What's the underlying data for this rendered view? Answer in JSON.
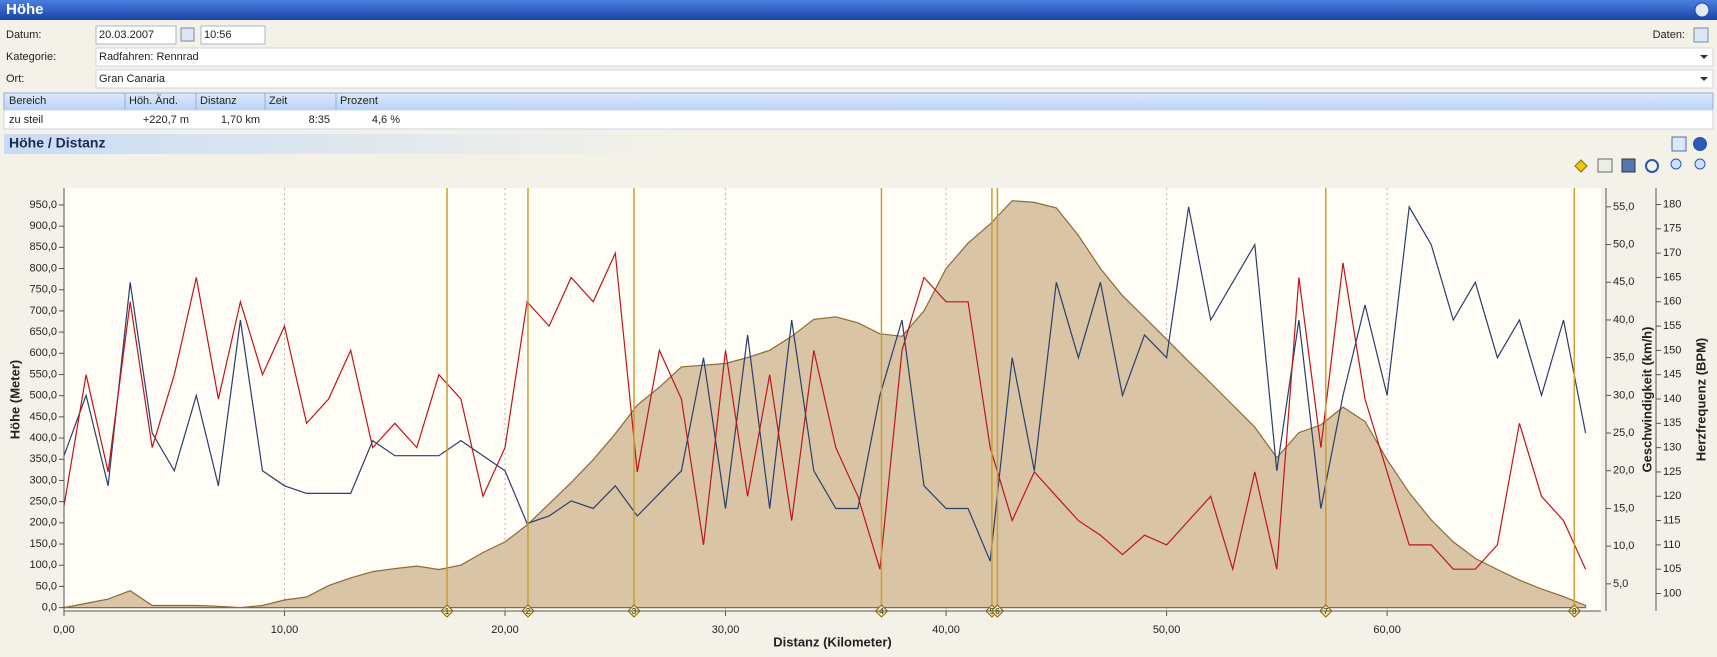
{
  "header": {
    "title": "Höhe"
  },
  "form": {
    "date_label": "Datum:",
    "date": "20.03.2007",
    "time": "10:56",
    "data_label": "Daten:",
    "category_label": "Kategorie:",
    "category": "Radfahren: Rennrad",
    "place_label": "Ort:",
    "place": "Gran Canaria"
  },
  "table": {
    "columns": [
      "Bereich",
      "Höh. Änd.",
      "Distanz",
      "Zeit",
      "Prozent"
    ],
    "rows": [
      [
        "zu steil",
        "+220,7 m",
        "1,70 km",
        "8:35",
        "4,6 %"
      ]
    ]
  },
  "chart_data": {
    "type": "line",
    "title": "Höhe / Distanz",
    "x_label": "Distanz (Kilometer)",
    "y_label": "Höhe (Meter)",
    "y2_label": "Geschwindigkeit (km/h)",
    "y3_label": "Herzfrequenz (BPM)",
    "grid": "x",
    "x": [
      0,
      1,
      2,
      3,
      4,
      5,
      6,
      7,
      8,
      9,
      10,
      11,
      12,
      13,
      14,
      15,
      16,
      17,
      18,
      19,
      20,
      21,
      22,
      23,
      24,
      25,
      26,
      27,
      28,
      29,
      30,
      31,
      32,
      33,
      34,
      35,
      36,
      37,
      38,
      39,
      40,
      41,
      42,
      43,
      44,
      45,
      46,
      47,
      48,
      49,
      50,
      51,
      52,
      53,
      54,
      55,
      56,
      57,
      58,
      59,
      60,
      61,
      62,
      63,
      64,
      65,
      66,
      67,
      68,
      69
    ],
    "xlim": [
      0,
      69.7
    ],
    "xticks": [
      {
        "value": 0,
        "label": "0,00"
      },
      {
        "value": 10,
        "label": "10,00"
      },
      {
        "value": 20,
        "label": "20,00"
      },
      {
        "value": 30,
        "label": "30,00"
      },
      {
        "value": 40,
        "label": "40,00"
      },
      {
        "value": 50,
        "label": "50,00"
      },
      {
        "value": 60,
        "label": "60,00"
      }
    ],
    "ylim": [
      -8,
      990
    ],
    "yticks": [
      {
        "value": 0,
        "label": "0,0"
      },
      {
        "value": 50,
        "label": "50,0"
      },
      {
        "value": 100,
        "label": "100,0"
      },
      {
        "value": 150,
        "label": "150,0"
      },
      {
        "value": 200,
        "label": "200,0"
      },
      {
        "value": 250,
        "label": "250,0"
      },
      {
        "value": 300,
        "label": "300,0"
      },
      {
        "value": 350,
        "label": "350,0"
      },
      {
        "value": 400,
        "label": "400,0"
      },
      {
        "value": 450,
        "label": "450,0"
      },
      {
        "value": 500,
        "label": "500,0"
      },
      {
        "value": 550,
        "label": "550,0"
      },
      {
        "value": 600,
        "label": "600,0"
      },
      {
        "value": 650,
        "label": "650,0"
      },
      {
        "value": 700,
        "label": "700,0"
      },
      {
        "value": 750,
        "label": "750,0"
      },
      {
        "value": 800,
        "label": "800,0"
      },
      {
        "value": 850,
        "label": "850,0"
      },
      {
        "value": 900,
        "label": "900,0"
      },
      {
        "value": 950,
        "label": "950,0"
      }
    ],
    "y2lim": [
      1.4,
      57.5
    ],
    "y2ticks": [
      {
        "value": 5,
        "label": "5,0"
      },
      {
        "value": 10,
        "label": "10,0"
      },
      {
        "value": 15,
        "label": "15,0"
      },
      {
        "value": 20,
        "label": "20,0"
      },
      {
        "value": 25,
        "label": "25,0"
      },
      {
        "value": 30,
        "label": "30,0"
      },
      {
        "value": 35,
        "label": "35,0"
      },
      {
        "value": 40,
        "label": "40,0"
      },
      {
        "value": 45,
        "label": "45,0"
      },
      {
        "value": 50,
        "label": "50,0"
      },
      {
        "value": 55,
        "label": "55,0"
      }
    ],
    "y3lim": [
      96.4,
      183.4
    ],
    "y3ticks": [
      100,
      105,
      110,
      115,
      120,
      125,
      130,
      135,
      140,
      145,
      150,
      155,
      160,
      165,
      170,
      175,
      180
    ],
    "series": [
      {
        "axis": "y",
        "color": "#8a6a3a",
        "fill": "#d9c4a6",
        "values": [
          0,
          10,
          20,
          40,
          5,
          5,
          5,
          3,
          0,
          5,
          18,
          25,
          52,
          70,
          85,
          92,
          98,
          90,
          100,
          130,
          155,
          195,
          245,
          295,
          349,
          410,
          478,
          520,
          568,
          572,
          576,
          590,
          607,
          640,
          680,
          686,
          672,
          646,
          640,
          700,
          800,
          860,
          905,
          960,
          956,
          943,
          878,
          800,
          736,
          685,
          633,
          581,
          530,
          478,
          426,
          354,
          413,
          431,
          473,
          439,
          349,
          271,
          207,
          155,
          116,
          90,
          65,
          44,
          26,
          5
        ]
      },
      {
        "axis": "y2",
        "color": "#2b3f6b",
        "values": [
          22,
          30,
          18,
          45,
          25,
          20,
          30,
          18,
          40,
          20,
          18,
          17,
          17,
          17,
          24,
          22,
          22,
          22,
          24,
          22,
          20,
          13,
          14,
          16,
          15,
          18,
          14,
          17,
          20,
          35,
          15,
          38,
          15,
          40,
          20,
          15,
          15,
          30,
          40,
          18,
          15,
          15,
          8,
          35,
          20,
          45,
          35,
          45,
          30,
          38,
          35,
          55,
          40,
          45,
          50,
          20,
          40,
          15,
          30,
          42,
          30,
          55,
          50,
          40,
          45,
          35,
          40,
          30,
          40,
          25
        ]
      },
      {
        "axis": "y3",
        "color": "#c0141c",
        "values": [
          118,
          145,
          125,
          160,
          130,
          145,
          165,
          140,
          160,
          145,
          155,
          135,
          140,
          150,
          130,
          135,
          130,
          145,
          140,
          120,
          130,
          160,
          155,
          165,
          160,
          170,
          125,
          150,
          140,
          110,
          150,
          120,
          145,
          115,
          150,
          130,
          120,
          105,
          150,
          165,
          160,
          160,
          130,
          115,
          125,
          120,
          115,
          112,
          108,
          112,
          110,
          115,
          120,
          105,
          125,
          105,
          165,
          130,
          168,
          140,
          125,
          110,
          110,
          105,
          105,
          110,
          135,
          120,
          115,
          105
        ]
      }
    ],
    "markers": {
      "color": "#c8a032",
      "x": [
        17.37,
        21.04,
        25.85,
        37.07,
        42.08,
        42.33,
        57.22,
        68.49
      ],
      "labels": [
        "1",
        "2",
        "3",
        "4",
        "5",
        "6",
        "7",
        "8"
      ]
    }
  }
}
